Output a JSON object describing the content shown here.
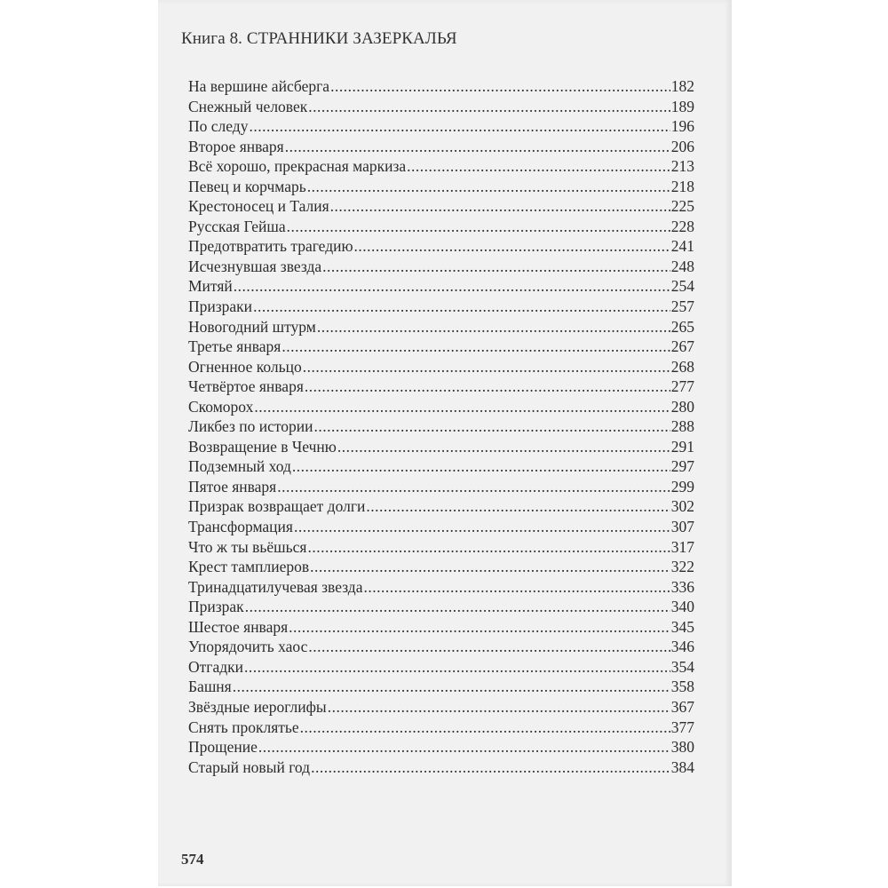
{
  "header": {
    "title": "Книга 8. СТРАННИКИ ЗАЗЕРКАЛЬЯ"
  },
  "toc": [
    {
      "title": "На вершине айсберга",
      "page": "182"
    },
    {
      "title": "Снежный человек",
      "page": "189"
    },
    {
      "title": "По следу",
      "page": "196"
    },
    {
      "title": "Второе января",
      "page": "206"
    },
    {
      "title": "Всё хорошо, прекрасная маркиза",
      "page": "213"
    },
    {
      "title": "Певец и корчмарь",
      "page": "218"
    },
    {
      "title": "Крестоносец и Талия",
      "page": "225"
    },
    {
      "title": "Русская Гейша",
      "page": "228"
    },
    {
      "title": "Предотвратить трагедию",
      "page": "241"
    },
    {
      "title": "Исчезнувшая звезда",
      "page": "248"
    },
    {
      "title": "Митяй",
      "page": "254"
    },
    {
      "title": "Призраки",
      "page": "257"
    },
    {
      "title": "Новогодний штурм",
      "page": "265"
    },
    {
      "title": "Третье января",
      "page": "267"
    },
    {
      "title": "Огненное кольцо",
      "page": "268"
    },
    {
      "title": "Четвёртое января",
      "page": "277"
    },
    {
      "title": "Скоморох",
      "page": "280"
    },
    {
      "title": "Ликбез по истории",
      "page": "288"
    },
    {
      "title": "Возвращение в Чечню",
      "page": "291"
    },
    {
      "title": "Подземный ход",
      "page": "297"
    },
    {
      "title": "Пятое января",
      "page": "299"
    },
    {
      "title": "Призрак возвращает долги",
      "page": "302"
    },
    {
      "title": "Трансформация",
      "page": "307"
    },
    {
      "title": "Что ж ты вьёшься",
      "page": "317"
    },
    {
      "title": "Крест тамплиеров",
      "page": "322"
    },
    {
      "title": "Тринадцатилучевая звезда",
      "page": "336"
    },
    {
      "title": "Призрак",
      "page": "340"
    },
    {
      "title": "Шестое января",
      "page": "345"
    },
    {
      "title": "Упорядочить хаос",
      "page": "346"
    },
    {
      "title": "Отгадки",
      "page": "354"
    },
    {
      "title": "Башня",
      "page": "358"
    },
    {
      "title": "Звёздные иероглифы",
      "page": "367"
    },
    {
      "title": "Снять проклятье",
      "page": "377"
    },
    {
      "title": "Прощение",
      "page": "380"
    },
    {
      "title": "Старый новый год",
      "page": "384"
    }
  ],
  "footer": {
    "page_number": "574"
  }
}
